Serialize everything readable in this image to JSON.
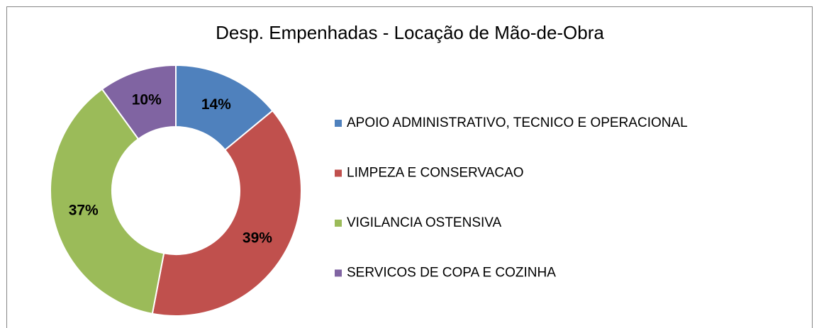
{
  "chart_data": {
    "type": "donut",
    "title": "Desp. Empenhadas - Locação de Mão-de-Obra",
    "categories": [
      "APOIO ADMINISTRATIVO, TECNICO E OPERACIONAL",
      "LIMPEZA E CONSERVACAO",
      "VIGILANCIA OSTENSIVA",
      "SERVICOS DE COPA E COZINHA"
    ],
    "values": [
      14,
      39,
      37,
      10
    ],
    "value_labels": [
      "14%",
      "39%",
      "37%",
      "10%"
    ],
    "colors": [
      "#4f81bd",
      "#c0504d",
      "#9bbb59",
      "#8064a2"
    ],
    "legend": "right"
  }
}
